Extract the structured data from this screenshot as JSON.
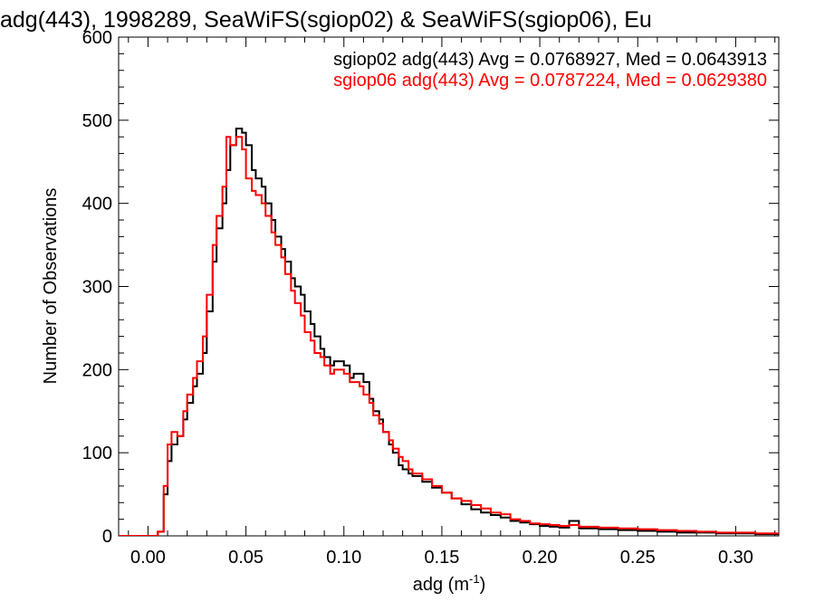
{
  "chart_data": {
    "type": "line",
    "title": "adg(443), 1998289, SeaWiFS(sgiop02) & SeaWiFS(sgiop06), Eu",
    "xlabel": "adg (m",
    "xlabel_sup": "-1",
    "xlabel_close": ")",
    "ylabel": "Number of Observations",
    "xlim": [
      -0.015,
      0.322
    ],
    "ylim": [
      0,
      600
    ],
    "xticks": [
      0.0,
      0.05,
      0.1,
      0.15,
      0.2,
      0.25,
      0.3
    ],
    "xtick_labels": [
      "0.00",
      "0.05",
      "0.10",
      "0.15",
      "0.20",
      "0.25",
      "0.30"
    ],
    "yticks": [
      0,
      100,
      200,
      300,
      400,
      500,
      600
    ],
    "ytick_labels": [
      "0",
      "100",
      "200",
      "300",
      "400",
      "500",
      "600"
    ],
    "step": "histogram",
    "annotations": [
      {
        "text": "sgiop02 adg(443) Avg = 0.0768927, Med = 0.0643913",
        "color": "#000000"
      },
      {
        "text": "sgiop06 adg(443) Avg = 0.0787224, Med = 0.0629380",
        "color": "#ff0000"
      }
    ],
    "series": [
      {
        "color": "#000000",
        "points": [
          [
            -0.015,
            0
          ],
          [
            0.0,
            0
          ],
          [
            0.005,
            5
          ],
          [
            0.008,
            50
          ],
          [
            0.01,
            90
          ],
          [
            0.012,
            110
          ],
          [
            0.015,
            120
          ],
          [
            0.018,
            140
          ],
          [
            0.02,
            160
          ],
          [
            0.023,
            180
          ],
          [
            0.025,
            195
          ],
          [
            0.028,
            220
          ],
          [
            0.03,
            270
          ],
          [
            0.033,
            330
          ],
          [
            0.035,
            370
          ],
          [
            0.038,
            400
          ],
          [
            0.04,
            440
          ],
          [
            0.042,
            470
          ],
          [
            0.045,
            490
          ],
          [
            0.048,
            485
          ],
          [
            0.05,
            470
          ],
          [
            0.053,
            440
          ],
          [
            0.055,
            430
          ],
          [
            0.058,
            420
          ],
          [
            0.06,
            400
          ],
          [
            0.063,
            380
          ],
          [
            0.065,
            360
          ],
          [
            0.068,
            345
          ],
          [
            0.07,
            330
          ],
          [
            0.073,
            310
          ],
          [
            0.075,
            300
          ],
          [
            0.078,
            290
          ],
          [
            0.08,
            270
          ],
          [
            0.083,
            255
          ],
          [
            0.085,
            240
          ],
          [
            0.088,
            225
          ],
          [
            0.09,
            215
          ],
          [
            0.093,
            205
          ],
          [
            0.095,
            210
          ],
          [
            0.098,
            210
          ],
          [
            0.1,
            205
          ],
          [
            0.103,
            190
          ],
          [
            0.105,
            195
          ],
          [
            0.108,
            195
          ],
          [
            0.11,
            185
          ],
          [
            0.113,
            165
          ],
          [
            0.115,
            150
          ],
          [
            0.118,
            140
          ],
          [
            0.12,
            125
          ],
          [
            0.123,
            110
          ],
          [
            0.125,
            100
          ],
          [
            0.128,
            85
          ],
          [
            0.13,
            80
          ],
          [
            0.133,
            75
          ],
          [
            0.135,
            72
          ],
          [
            0.14,
            65
          ],
          [
            0.145,
            58
          ],
          [
            0.15,
            52
          ],
          [
            0.155,
            45
          ],
          [
            0.16,
            38
          ],
          [
            0.165,
            32
          ],
          [
            0.17,
            28
          ],
          [
            0.175,
            25
          ],
          [
            0.18,
            22
          ],
          [
            0.185,
            18
          ],
          [
            0.19,
            16
          ],
          [
            0.195,
            14
          ],
          [
            0.2,
            12
          ],
          [
            0.205,
            11
          ],
          [
            0.21,
            10
          ],
          [
            0.215,
            18
          ],
          [
            0.22,
            9
          ],
          [
            0.23,
            8
          ],
          [
            0.24,
            7
          ],
          [
            0.25,
            6
          ],
          [
            0.26,
            5
          ],
          [
            0.27,
            4
          ],
          [
            0.28,
            4
          ],
          [
            0.29,
            3
          ],
          [
            0.3,
            3
          ],
          [
            0.31,
            2
          ],
          [
            0.322,
            2
          ]
        ]
      },
      {
        "color": "#ff0000",
        "points": [
          [
            -0.015,
            0
          ],
          [
            0.0,
            0
          ],
          [
            0.005,
            5
          ],
          [
            0.008,
            60
          ],
          [
            0.01,
            110
          ],
          [
            0.012,
            125
          ],
          [
            0.015,
            120
          ],
          [
            0.018,
            150
          ],
          [
            0.02,
            170
          ],
          [
            0.023,
            190
          ],
          [
            0.025,
            210
          ],
          [
            0.028,
            240
          ],
          [
            0.03,
            290
          ],
          [
            0.033,
            350
          ],
          [
            0.035,
            385
          ],
          [
            0.038,
            420
          ],
          [
            0.04,
            480
          ],
          [
            0.042,
            470
          ],
          [
            0.045,
            480
          ],
          [
            0.048,
            465
          ],
          [
            0.05,
            430
          ],
          [
            0.053,
            415
          ],
          [
            0.055,
            410
          ],
          [
            0.058,
            400
          ],
          [
            0.06,
            385
          ],
          [
            0.063,
            365
          ],
          [
            0.065,
            350
          ],
          [
            0.068,
            335
          ],
          [
            0.07,
            315
          ],
          [
            0.073,
            295
          ],
          [
            0.075,
            280
          ],
          [
            0.078,
            265
          ],
          [
            0.08,
            245
          ],
          [
            0.083,
            235
          ],
          [
            0.085,
            220
          ],
          [
            0.088,
            215
          ],
          [
            0.09,
            205
          ],
          [
            0.093,
            195
          ],
          [
            0.095,
            200
          ],
          [
            0.098,
            200
          ],
          [
            0.1,
            195
          ],
          [
            0.103,
            185
          ],
          [
            0.105,
            185
          ],
          [
            0.108,
            180
          ],
          [
            0.11,
            170
          ],
          [
            0.113,
            160
          ],
          [
            0.115,
            145
          ],
          [
            0.118,
            135
          ],
          [
            0.12,
            125
          ],
          [
            0.123,
            115
          ],
          [
            0.125,
            105
          ],
          [
            0.128,
            95
          ],
          [
            0.13,
            90
          ],
          [
            0.133,
            80
          ],
          [
            0.135,
            75
          ],
          [
            0.14,
            68
          ],
          [
            0.145,
            60
          ],
          [
            0.15,
            52
          ],
          [
            0.155,
            45
          ],
          [
            0.16,
            42
          ],
          [
            0.165,
            37
          ],
          [
            0.17,
            33
          ],
          [
            0.175,
            28
          ],
          [
            0.18,
            26
          ],
          [
            0.185,
            20
          ],
          [
            0.19,
            18
          ],
          [
            0.195,
            15
          ],
          [
            0.2,
            14
          ],
          [
            0.205,
            13
          ],
          [
            0.21,
            12
          ],
          [
            0.215,
            13
          ],
          [
            0.22,
            11
          ],
          [
            0.23,
            10
          ],
          [
            0.24,
            9
          ],
          [
            0.25,
            8
          ],
          [
            0.26,
            7
          ],
          [
            0.27,
            6
          ],
          [
            0.28,
            5
          ],
          [
            0.29,
            4
          ],
          [
            0.3,
            4
          ],
          [
            0.31,
            3
          ],
          [
            0.322,
            3
          ]
        ]
      }
    ],
    "grid": false,
    "legend": "top-right"
  }
}
